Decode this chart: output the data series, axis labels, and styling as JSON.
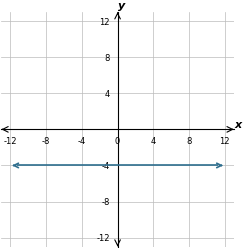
{
  "xlim": [
    -12,
    12
  ],
  "ylim": [
    -12,
    12
  ],
  "xticks": [
    -12,
    -8,
    -4,
    0,
    4,
    8,
    12
  ],
  "yticks": [
    -12,
    -8,
    -4,
    0,
    4,
    8,
    12
  ],
  "line_y": -4,
  "line_x_start": -11.2,
  "line_x_end": 11.2,
  "line_color": "#2E6E8E",
  "line_width": 1.2,
  "xlabel": "x",
  "ylabel": "y",
  "grid_color": "#BBBBBB",
  "grid_linewidth": 0.5,
  "axis_linewidth": 0.8,
  "tick_fontsize": 6,
  "label_fontsize": 8
}
